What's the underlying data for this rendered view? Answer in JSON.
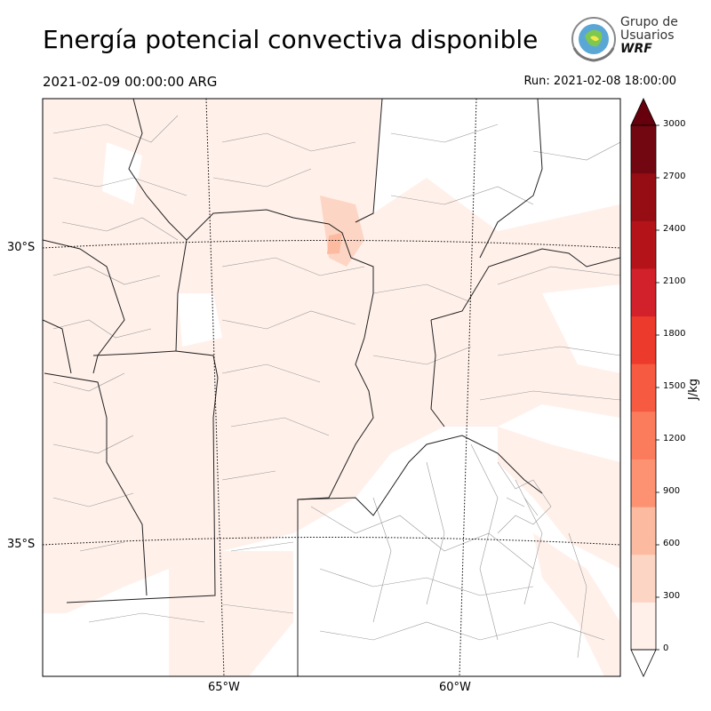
{
  "header": {
    "title": "Energía potencial convectiva disponible",
    "valid_time": "2021-02-09 00:00:00 ARG",
    "run_time": "Run: 2021-02-08 18:00:00"
  },
  "logo": {
    "line1": "Grupo de",
    "line2": "Usuarios",
    "line3": "WRF"
  },
  "map": {
    "lat_labels": [
      "30°S",
      "35°S"
    ],
    "lon_labels": [
      "65°W",
      "60°W"
    ]
  },
  "colorbar": {
    "unit": "J/kg",
    "levels": [
      0,
      300,
      600,
      900,
      1200,
      1500,
      1800,
      2100,
      2400,
      2700,
      3000
    ],
    "colors": [
      "#fff0ea",
      "#fdd5c4",
      "#fcbba1",
      "#fc9272",
      "#fb7c5c",
      "#f65a40",
      "#ec3a2c",
      "#d2212a",
      "#b41419",
      "#960d13",
      "#730711"
    ],
    "over_color": "#67000d",
    "under_color": "#ffffff"
  }
}
